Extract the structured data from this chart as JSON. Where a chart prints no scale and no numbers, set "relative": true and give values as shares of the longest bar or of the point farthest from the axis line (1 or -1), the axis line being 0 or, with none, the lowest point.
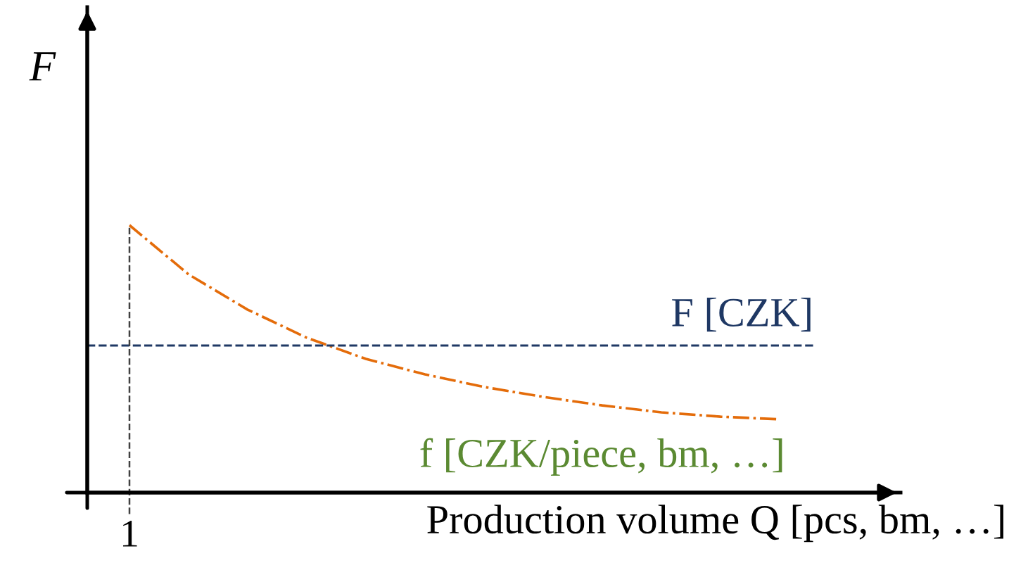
{
  "chart_data": {
    "type": "line",
    "relative": true,
    "ylabel": "F",
    "xlabel": "Production volume Q [pcs, bm, …]",
    "categories": [
      null,
      null,
      null,
      null,
      null,
      null,
      null,
      null,
      null,
      null,
      null,
      null
    ],
    "series": [
      {
        "name": "f [CZK/piece, bm, …]",
        "color": "#e46c0a",
        "line_style": "dashdot",
        "values": [
          1,
          0.816,
          0.684,
          0.579,
          0.5,
          0.442,
          0.395,
          0.358,
          0.326,
          0.3,
          0.284,
          0.274
        ]
      }
    ],
    "ref_lines": [
      {
        "axis": "y",
        "value": 0.55,
        "label": "F [CZK]",
        "color": "#1f3864",
        "line_style": "dashed"
      },
      {
        "axis": "x",
        "label": "1",
        "color": "#404040",
        "line_style": "dashed"
      }
    ],
    "marker": "none"
  }
}
